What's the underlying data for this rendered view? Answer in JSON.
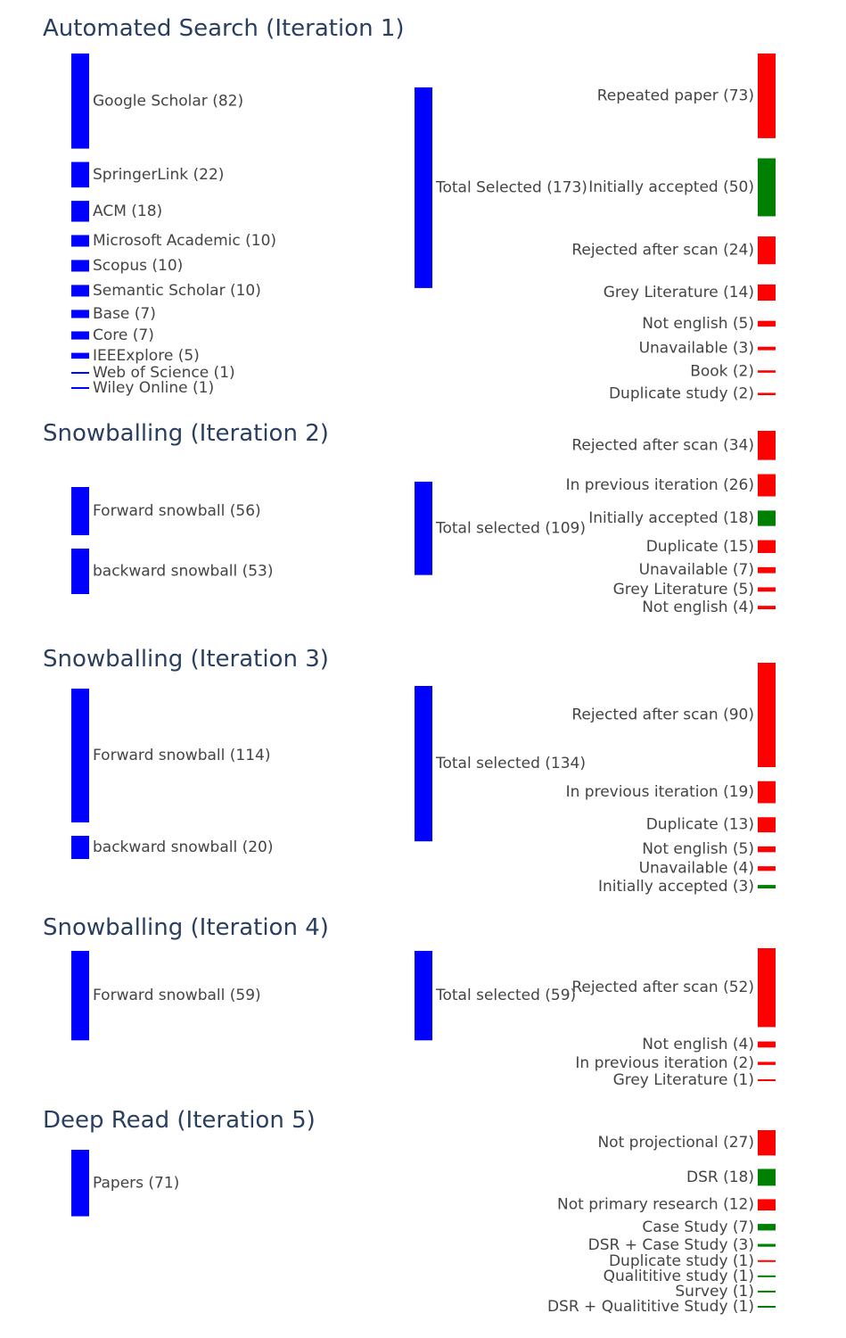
{
  "colors": {
    "source_node": "#0000ff",
    "middle_node": "#0000ff",
    "accepted": "#008000",
    "rejected": "#ff0000",
    "link": "#c8c8c8",
    "title": "#2a3f5f",
    "label": "#444444"
  },
  "diagrams": [
    {
      "title": "Automated Search (Iteration 1)",
      "sources": [
        {
          "label": "Google Scholar (82)",
          "value": 82
        },
        {
          "label": "SpringerLink (22)",
          "value": 22
        },
        {
          "label": "ACM (18)",
          "value": 18
        },
        {
          "label": "Microsoft Academic (10)",
          "value": 10
        },
        {
          "label": "Scopus (10)",
          "value": 10
        },
        {
          "label": "Semantic Scholar (10)",
          "value": 10
        },
        {
          "label": "Base (7)",
          "value": 7
        },
        {
          "label": "Core (7)",
          "value": 7
        },
        {
          "label": "IEEExplore (5)",
          "value": 5
        },
        {
          "label": "Web of Science (1)",
          "value": 1
        },
        {
          "label": "Wiley Online (1)",
          "value": 1
        }
      ],
      "middle": {
        "label": "Total Selected (173)",
        "value": 173
      },
      "targets": [
        {
          "label": "Repeated paper (73)",
          "value": 73,
          "status": "rejected"
        },
        {
          "label": "Initially accepted (50)",
          "value": 50,
          "status": "accepted"
        },
        {
          "label": "Rejected after scan (24)",
          "value": 24,
          "status": "rejected"
        },
        {
          "label": "Grey Literature (14)",
          "value": 14,
          "status": "rejected"
        },
        {
          "label": "Not english (5)",
          "value": 5,
          "status": "rejected"
        },
        {
          "label": "Unavailable (3)",
          "value": 3,
          "status": "rejected"
        },
        {
          "label": "Book (2)",
          "value": 2,
          "status": "rejected"
        },
        {
          "label": "Duplicate study (2)",
          "value": 2,
          "status": "rejected"
        }
      ]
    },
    {
      "title": "Snowballing (Iteration 2)",
      "sources": [
        {
          "label": "Forward snowball (56)",
          "value": 56
        },
        {
          "label": "backward snowball (53)",
          "value": 53
        }
      ],
      "middle": {
        "label": "Total selected (109)",
        "value": 109
      },
      "targets": [
        {
          "label": "Rejected after scan (34)",
          "value": 34,
          "status": "rejected"
        },
        {
          "label": "In previous iteration (26)",
          "value": 26,
          "status": "rejected"
        },
        {
          "label": "Initially accepted (18)",
          "value": 18,
          "status": "accepted"
        },
        {
          "label": "Duplicate (15)",
          "value": 15,
          "status": "rejected"
        },
        {
          "label": "Unavailable (7)",
          "value": 7,
          "status": "rejected"
        },
        {
          "label": "Grey Literature (5)",
          "value": 5,
          "status": "rejected"
        },
        {
          "label": "Not english (4)",
          "value": 4,
          "status": "rejected"
        }
      ]
    },
    {
      "title": "Snowballing (Iteration 3)",
      "sources": [
        {
          "label": "Forward snowball (114)",
          "value": 114
        },
        {
          "label": "backward snowball (20)",
          "value": 20
        }
      ],
      "middle": {
        "label": "Total selected (134)",
        "value": 134
      },
      "targets": [
        {
          "label": "Rejected after scan (90)",
          "value": 90,
          "status": "rejected"
        },
        {
          "label": "In previous iteration (19)",
          "value": 19,
          "status": "rejected"
        },
        {
          "label": "Duplicate (13)",
          "value": 13,
          "status": "rejected"
        },
        {
          "label": "Not english (5)",
          "value": 5,
          "status": "rejected"
        },
        {
          "label": "Unavailable (4)",
          "value": 4,
          "status": "rejected"
        },
        {
          "label": "Initially accepted (3)",
          "value": 3,
          "status": "accepted"
        }
      ]
    },
    {
      "title": "Snowballing (Iteration 4)",
      "sources": [
        {
          "label": "Forward snowball (59)",
          "value": 59
        }
      ],
      "middle": {
        "label": "Total selected (59)",
        "value": 59
      },
      "targets": [
        {
          "label": "Rejected after scan (52)",
          "value": 52,
          "status": "rejected"
        },
        {
          "label": "Not english (4)",
          "value": 4,
          "status": "rejected"
        },
        {
          "label": "In previous iteration (2)",
          "value": 2,
          "status": "rejected"
        },
        {
          "label": "Grey Literature (1)",
          "value": 1,
          "status": "rejected"
        }
      ]
    },
    {
      "title": "Deep Read (Iteration 5)",
      "sources": [
        {
          "label": "Papers (71)",
          "value": 71
        }
      ],
      "middle": null,
      "targets": [
        {
          "label": "Not projectional (27)",
          "value": 27,
          "status": "rejected"
        },
        {
          "label": "DSR (18)",
          "value": 18,
          "status": "accepted"
        },
        {
          "label": "Not primary research (12)",
          "value": 12,
          "status": "rejected"
        },
        {
          "label": "Case Study (7)",
          "value": 7,
          "status": "accepted"
        },
        {
          "label": "DSR + Case Study (3)",
          "value": 3,
          "status": "accepted"
        },
        {
          "label": "Duplicate study (1)",
          "value": 1,
          "status": "rejected"
        },
        {
          "label": "Qualititive study (1)",
          "value": 1,
          "status": "accepted"
        },
        {
          "label": "Survey (1)",
          "value": 1,
          "status": "accepted"
        },
        {
          "label": "DSR + Qualititive Study (1)",
          "value": 1,
          "status": "accepted"
        }
      ]
    }
  ]
}
